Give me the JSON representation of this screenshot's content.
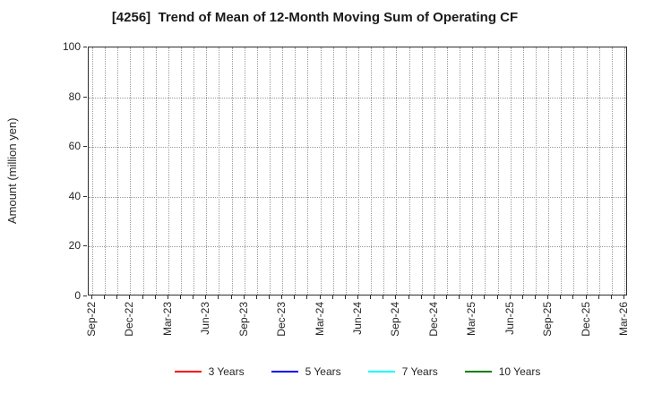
{
  "chart_data": {
    "type": "line",
    "title": "[4256]  Trend of Mean of 12-Month Moving Sum of Operating CF",
    "xlabel": "",
    "ylabel": "Amount (million yen)",
    "ylim": [
      0,
      100
    ],
    "yticks": [
      0,
      20,
      40,
      60,
      80,
      100
    ],
    "x_tick_labels": [
      "Sep-22",
      "Dec-22",
      "Mar-23",
      "Jun-23",
      "Sep-23",
      "Dec-23",
      "Mar-24",
      "Jun-24",
      "Sep-24",
      "Dec-24",
      "Mar-25",
      "Jun-25",
      "Sep-25",
      "Dec-25",
      "Mar-26"
    ],
    "x_minor_gridline_interval_months": 1,
    "grid": true,
    "grid_style": "dotted",
    "legend_position": "bottom",
    "series": [
      {
        "name": "3 Years",
        "color": "#ff0000",
        "values": []
      },
      {
        "name": "5 Years",
        "color": "#0000ff",
        "values": []
      },
      {
        "name": "7 Years",
        "color": "#00ffff",
        "values": []
      },
      {
        "name": "10 Years",
        "color": "#008000",
        "values": []
      }
    ],
    "no_data_plotted": true
  }
}
